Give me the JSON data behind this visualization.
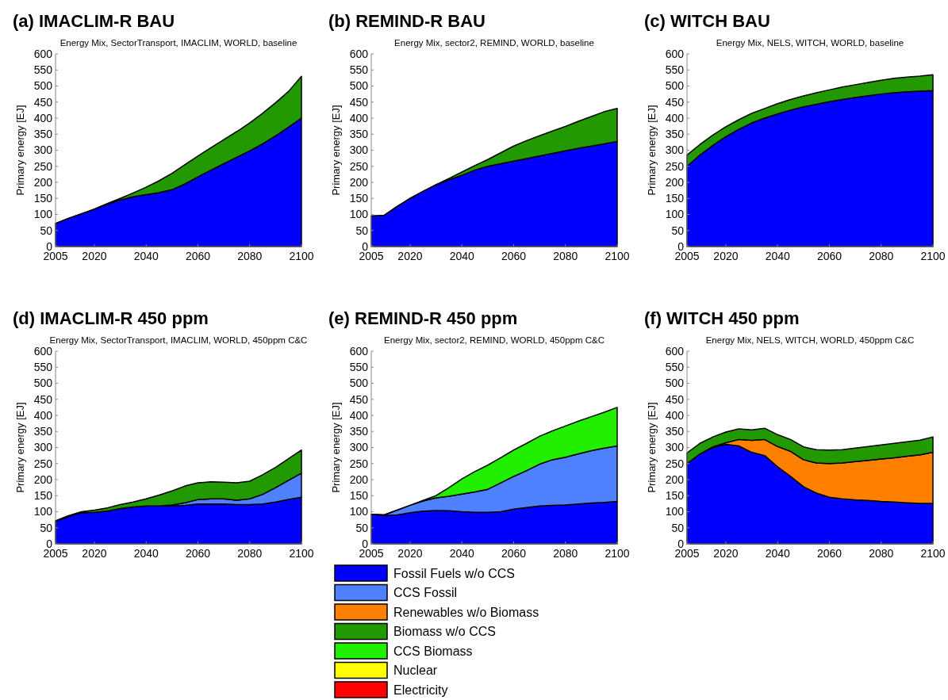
{
  "chart_data": [
    {
      "type": "area",
      "stacked": true,
      "title": "(a) IMACLIM-R BAU",
      "subtitle": "Energy Mix, SectorTransport, IMACLIM, WORLD, baseline",
      "ylabel": "Primary energy [EJ]",
      "x": [
        2005,
        2010,
        2015,
        2020,
        2025,
        2030,
        2035,
        2040,
        2045,
        2050,
        2055,
        2060,
        2065,
        2070,
        2075,
        2080,
        2085,
        2090,
        2095,
        2100
      ],
      "xlim": [
        2005,
        2100
      ],
      "xticks": [
        2005,
        2020,
        2040,
        2060,
        2080,
        2100
      ],
      "ylim": [
        0,
        600
      ],
      "yticks": [
        0,
        50,
        100,
        150,
        200,
        250,
        300,
        350,
        400,
        450,
        500,
        550,
        600
      ],
      "series": [
        {
          "color": "#0000ff",
          "values": [
            72,
            88,
            102,
            116,
            132,
            145,
            155,
            162,
            168,
            177,
            195,
            217,
            238,
            258,
            278,
            298,
            320,
            345,
            372,
            400
          ]
        },
        {
          "color": "#229900",
          "values": [
            0,
            0,
            0,
            1,
            2,
            5,
            12,
            23,
            37,
            51,
            60,
            65,
            70,
            75,
            80,
            87,
            95,
            103,
            111,
            130
          ]
        }
      ]
    },
    {
      "type": "area",
      "stacked": true,
      "title": "(b) REMIND-R BAU",
      "subtitle": "Energy Mix, sector2, REMIND, WORLD, baseline",
      "ylabel": "Primary energy [EJ]",
      "x": [
        2005,
        2010,
        2015,
        2020,
        2025,
        2030,
        2035,
        2040,
        2045,
        2050,
        2055,
        2060,
        2065,
        2070,
        2075,
        2080,
        2085,
        2090,
        2095,
        2100
      ],
      "xlim": [
        2005,
        2100
      ],
      "xticks": [
        2005,
        2020,
        2040,
        2060,
        2080,
        2100
      ],
      "ylim": [
        0,
        600
      ],
      "yticks": [
        0,
        50,
        100,
        150,
        200,
        250,
        300,
        350,
        400,
        450,
        500,
        550,
        600
      ],
      "series": [
        {
          "color": "#0000ff",
          "values": [
            95,
            97,
            125,
            150,
            172,
            192,
            208,
            222,
            238,
            250,
            258,
            266,
            274,
            282,
            290,
            298,
            306,
            313,
            320,
            327
          ]
        },
        {
          "color": "#229900",
          "values": [
            0,
            0,
            0,
            0,
            0,
            1,
            4,
            10,
            14,
            21,
            34,
            47,
            56,
            63,
            70,
            76,
            84,
            92,
            100,
            103
          ]
        }
      ]
    },
    {
      "type": "area",
      "stacked": true,
      "title": "(c) WITCH BAU",
      "subtitle": "Energy Mix, NELS, WITCH, WORLD, baseline",
      "ylabel": "Primary energy [EJ]",
      "x": [
        2005,
        2010,
        2015,
        2020,
        2025,
        2030,
        2035,
        2040,
        2045,
        2050,
        2055,
        2060,
        2065,
        2070,
        2075,
        2080,
        2085,
        2090,
        2095,
        2100
      ],
      "xlim": [
        2005,
        2100
      ],
      "xticks": [
        2005,
        2020,
        2040,
        2060,
        2080,
        2100
      ],
      "ylim": [
        0,
        600
      ],
      "yticks": [
        0,
        50,
        100,
        150,
        200,
        250,
        300,
        350,
        400,
        450,
        500,
        550,
        600
      ],
      "series": [
        {
          "color": "#0000ff",
          "values": [
            250,
            285,
            315,
            342,
            365,
            385,
            400,
            413,
            425,
            435,
            443,
            451,
            458,
            464,
            470,
            475,
            479,
            482,
            484,
            486
          ]
        },
        {
          "color": "#229900",
          "values": [
            35,
            33,
            32,
            31,
            30,
            30,
            30,
            32,
            33,
            34,
            36,
            37,
            39,
            40,
            41,
            43,
            45,
            46,
            47,
            49
          ]
        }
      ]
    },
    {
      "type": "area",
      "stacked": true,
      "title": "(d) IMACLIM-R 450 ppm",
      "subtitle": "Energy Mix, SectorTransport, IMACLIM, WORLD, 450ppm C&C",
      "ylabel": "Primary energy [EJ]",
      "x": [
        2005,
        2010,
        2015,
        2020,
        2025,
        2030,
        2035,
        2040,
        2045,
        2050,
        2055,
        2060,
        2065,
        2070,
        2075,
        2080,
        2085,
        2090,
        2095,
        2100
      ],
      "xlim": [
        2005,
        2100
      ],
      "xticks": [
        2005,
        2020,
        2040,
        2060,
        2080,
        2100
      ],
      "ylim": [
        0,
        600
      ],
      "yticks": [
        0,
        50,
        100,
        150,
        200,
        250,
        300,
        350,
        400,
        450,
        500,
        550,
        600
      ],
      "series": [
        {
          "color": "#0000ff",
          "values": [
            70,
            85,
            97,
            98,
            102,
            110,
            115,
            118,
            118,
            118,
            120,
            124,
            124,
            124,
            122,
            122,
            124,
            130,
            138,
            145
          ]
        },
        {
          "color": "#4f81ff",
          "values": [
            0,
            0,
            0,
            0,
            0,
            0,
            0,
            0,
            0,
            3,
            8,
            14,
            16,
            16,
            14,
            18,
            30,
            45,
            60,
            75
          ]
        },
        {
          "color": "#229900",
          "values": [
            2,
            3,
            3,
            7,
            10,
            12,
            15,
            22,
            34,
            44,
            52,
            52,
            53,
            52,
            54,
            55,
            61,
            63,
            67,
            72
          ]
        }
      ]
    },
    {
      "type": "area",
      "stacked": true,
      "title": "(e) REMIND-R 450 ppm",
      "subtitle": "Energy Mix, sector2, REMIND, WORLD, 450ppm C&C",
      "ylabel": "Primary energy [EJ]",
      "x": [
        2005,
        2010,
        2015,
        2020,
        2025,
        2030,
        2035,
        2040,
        2045,
        2050,
        2055,
        2060,
        2065,
        2070,
        2075,
        2080,
        2085,
        2090,
        2095,
        2100
      ],
      "xlim": [
        2005,
        2100
      ],
      "xticks": [
        2005,
        2020,
        2040,
        2060,
        2080,
        2100
      ],
      "ylim": [
        0,
        600
      ],
      "yticks": [
        0,
        50,
        100,
        150,
        200,
        250,
        300,
        350,
        400,
        450,
        500,
        550,
        600
      ],
      "series": [
        {
          "color": "#0000ff",
          "values": [
            92,
            88,
            90,
            97,
            102,
            104,
            103,
            100,
            98,
            98,
            100,
            108,
            113,
            118,
            120,
            121,
            124,
            127,
            129,
            132
          ]
        },
        {
          "color": "#4f81ff",
          "values": [
            0,
            2,
            15,
            23,
            31,
            39,
            45,
            55,
            64,
            72,
            90,
            102,
            115,
            130,
            142,
            149,
            156,
            163,
            169,
            173
          ]
        },
        {
          "color": "#22ee00",
          "values": [
            0,
            0,
            0,
            0,
            2,
            7,
            27,
            47,
            63,
            75,
            78,
            82,
            85,
            87,
            90,
            97,
            102,
            106,
            112,
            120
          ]
        }
      ]
    },
    {
      "type": "area",
      "stacked": true,
      "title": "(f) WITCH 450 ppm",
      "subtitle": "Energy Mix, NELS, WITCH, WORLD, 450ppm C&C",
      "ylabel": "Primary energy [EJ]",
      "x": [
        2005,
        2010,
        2015,
        2020,
        2025,
        2030,
        2035,
        2040,
        2045,
        2050,
        2055,
        2060,
        2065,
        2070,
        2075,
        2080,
        2085,
        2090,
        2095,
        2100
      ],
      "xlim": [
        2005,
        2100
      ],
      "xticks": [
        2005,
        2020,
        2040,
        2060,
        2080,
        2100
      ],
      "ylim": [
        0,
        600
      ],
      "yticks": [
        0,
        50,
        100,
        150,
        200,
        250,
        300,
        350,
        400,
        450,
        500,
        550,
        600
      ],
      "series": [
        {
          "color": "#0000ff",
          "values": [
            250,
            280,
            300,
            310,
            305,
            285,
            275,
            240,
            210,
            178,
            158,
            145,
            140,
            137,
            135,
            132,
            130,
            128,
            126,
            126
          ]
        },
        {
          "color": "#ff8000",
          "values": [
            0,
            0,
            2,
            5,
            20,
            37,
            50,
            63,
            78,
            84,
            94,
            105,
            112,
            119,
            125,
            132,
            138,
            145,
            151,
            159
          ]
        },
        {
          "color": "#229900",
          "values": [
            33,
            33,
            31,
            33,
            33,
            33,
            35,
            37,
            37,
            40,
            41,
            42,
            41,
            42,
            43,
            44,
            45,
            45,
            46,
            48
          ]
        }
      ]
    },
    {
      "type": "other",
      "categories": [
        "Fossil Fuels w/o CCS",
        "CCS Fossil",
        "Renewables w/o Biomass",
        "Biomass w/o CCS",
        "CCS Biomass",
        "Nuclear",
        "Electricity"
      ],
      "colors": [
        "#0000ff",
        "#4f81ff",
        "#ff8000",
        "#229900",
        "#22ee00",
        "#ffff00",
        "#ff0000"
      ]
    }
  ]
}
